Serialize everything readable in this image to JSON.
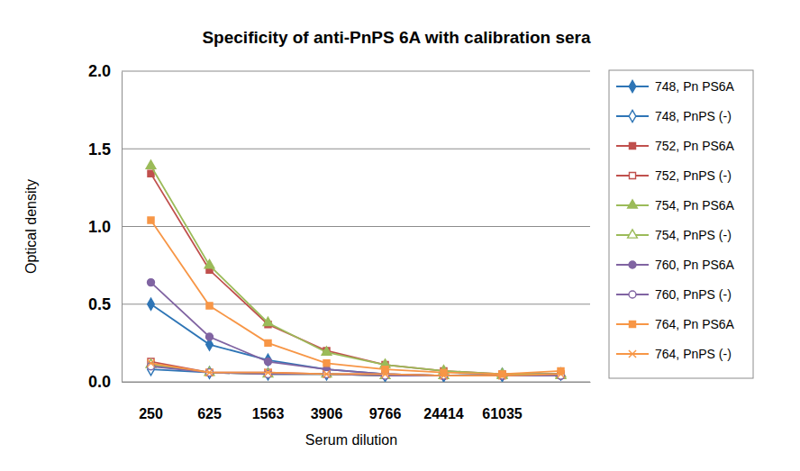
{
  "chart_data": {
    "type": "line",
    "title": "Specificity of anti-PnPS 6A with calibration sera",
    "x_label": "Serum dilution",
    "y_label": "Optical density",
    "categories": [
      250,
      625,
      1563,
      3906,
      9766,
      24414,
      61035,
      null
    ],
    "ylim": [
      0,
      2.0
    ],
    "yticks": [
      {
        "value": 0,
        "label": "0.0"
      },
      0.5,
      {
        "value": 1.0,
        "label": "1.0"
      },
      1.5,
      {
        "value": 2.0,
        "label": "2.0"
      }
    ],
    "grid": true,
    "legend": "right",
    "series": [
      {
        "name": "748, Pn PS6A",
        "color": "#2e75b6",
        "marker": "diamond",
        "values": [
          0.5,
          0.24,
          0.14,
          0.08,
          0.05,
          0.04,
          0.05,
          0.05
        ]
      },
      {
        "name": "748, PnPS (-)",
        "color": "#2e75b6",
        "marker": "open-diamond",
        "values": [
          0.08,
          0.06,
          0.05,
          0.05,
          0.04,
          0.04,
          0.04,
          0.05
        ]
      },
      {
        "name": "752, Pn PS6A",
        "color": "#c0504d",
        "marker": "square",
        "values": [
          1.34,
          0.72,
          0.37,
          0.2,
          0.11,
          0.07,
          0.05,
          0.05
        ]
      },
      {
        "name": "752, PnPS (-)",
        "color": "#c0504d",
        "marker": "open-square",
        "values": [
          0.13,
          0.06,
          0.06,
          0.05,
          0.05,
          0.04,
          0.04,
          0.05
        ]
      },
      {
        "name": "754, Pn PS6A",
        "color": "#9bbb59",
        "marker": "triangle",
        "values": [
          1.39,
          0.75,
          0.38,
          0.19,
          0.11,
          0.07,
          0.05,
          0.05
        ]
      },
      {
        "name": "754, PnPS (-)",
        "color": "#9bbb59",
        "marker": "open-triangle",
        "values": [
          0.11,
          0.06,
          0.05,
          0.05,
          0.04,
          0.04,
          0.04,
          0.04
        ]
      },
      {
        "name": "760, Pn PS6A",
        "color": "#8064a2",
        "marker": "circle",
        "values": [
          0.64,
          0.29,
          0.13,
          0.08,
          0.05,
          0.04,
          0.04,
          0.04
        ]
      },
      {
        "name": "760, PnPS (-)",
        "color": "#8064a2",
        "marker": "open-circle",
        "values": [
          0.1,
          0.06,
          0.05,
          0.05,
          0.04,
          0.04,
          0.04,
          0.04
        ]
      },
      {
        "name": "764, Pn PS6A",
        "color": "#f79646",
        "marker": "square",
        "values": [
          1.04,
          0.49,
          0.25,
          0.12,
          0.08,
          0.06,
          0.05,
          0.07
        ]
      },
      {
        "name": "764, PnPS (-)",
        "color": "#f79646",
        "marker": "x",
        "values": [
          0.12,
          0.06,
          0.06,
          0.05,
          0.05,
          0.04,
          0.04,
          0.05
        ]
      }
    ]
  }
}
